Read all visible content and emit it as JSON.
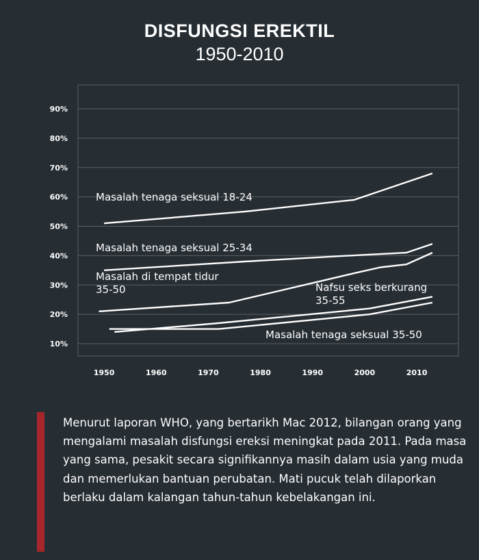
{
  "header": {
    "title": "DISFUNGSI EREKTIL",
    "subtitle": "1950-2010"
  },
  "chart_data": {
    "type": "line",
    "title": "DISFUNGSI EREKTIL",
    "subtitle": "1950-2010",
    "xlabel": "",
    "ylabel": "",
    "x_ticks": [
      "1950",
      "1960",
      "1970",
      "1980",
      "1990",
      "2000",
      "2010"
    ],
    "y_ticks": [
      "10%",
      "20%",
      "30%",
      "40%",
      "50%",
      "60%",
      "70%",
      "80%",
      "90%"
    ],
    "xlim": [
      1945,
      2018
    ],
    "ylim": [
      8,
      96
    ],
    "grid": "horizontal",
    "legend": "inline labels",
    "series": [
      {
        "name": "Masalah tenaga seksual 18-24",
        "label_lines": [
          "Masalah tenaga seksual 18-24"
        ],
        "x": [
          1950,
          1977,
          1998,
          2013
        ],
        "y": [
          51,
          55,
          59,
          68
        ]
      },
      {
        "name": "Masalah tenaga seksual 25-34",
        "label_lines": [
          "Masalah tenaga seksual 25-34"
        ],
        "x": [
          1950,
          1977,
          1997,
          2008,
          2013
        ],
        "y": [
          35,
          38,
          40,
          41,
          44
        ]
      },
      {
        "name": "Masalah di tempat tidur 35-50",
        "label_lines": [
          "Masalah di tempat tidur",
          "35-50"
        ],
        "x": [
          1949,
          1974,
          1998,
          2003,
          2008,
          2013
        ],
        "y": [
          21,
          24,
          34,
          36,
          37,
          41
        ]
      },
      {
        "name": "Nafsu seks berkurang 35-55",
        "label_lines": [
          "Nafsu seks berkurang",
          "35-55"
        ],
        "x": [
          1952,
          1972,
          2001,
          2013
        ],
        "y": [
          14,
          17,
          22,
          26
        ]
      },
      {
        "name": "Masalah tenaga seksual 35-50",
        "label_lines": [
          "Masalah tenaga seksual 35-50"
        ],
        "x": [
          1951,
          1972,
          2001,
          2013
        ],
        "y": [
          15,
          15,
          20,
          24
        ]
      }
    ]
  },
  "note": {
    "text": "Menurut laporan WHO, yang bertarikh Mac 2012, bilangan orang yang mengalami masalah disfungsi ereksi meningkat pada 2011. Pada masa yang sama, pesakit secara signifikannya masih dalam usia yang muda dan memerlukan bantuan perubatan. Mati pucuk telah dilaporkan berlaku dalam kalangan tahun-tahun kebelakangan ini.",
    "accent_color": "#a6262b"
  },
  "colors": {
    "background": "#262d33",
    "line": "#ffffff",
    "grid": "#5b6166"
  }
}
